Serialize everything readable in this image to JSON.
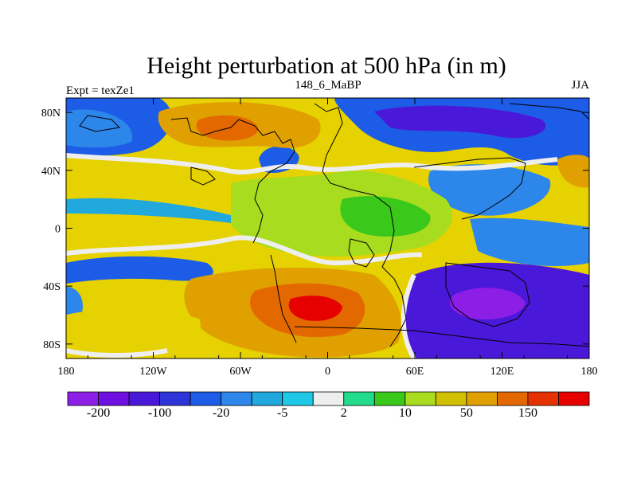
{
  "title": "Height perturbation at 500 hPa (in m)",
  "left_label": "Expt = texZe1",
  "center_label": "148_6_MaBP",
  "right_label": "JJA",
  "lon_ticks": [
    "180",
    "120W",
    "60W",
    "0",
    "60E",
    "120E",
    "180"
  ],
  "lat_ticks": [
    "80N",
    "40N",
    "0",
    "40S",
    "80S"
  ],
  "colorbar": {
    "colors": [
      "#8c1ee6",
      "#6e10e0",
      "#4a18d8",
      "#2e34d8",
      "#1c5ce6",
      "#2d86ea",
      "#21a8dc",
      "#1ec8e6",
      "#eeeeee",
      "#22dc8c",
      "#3ac81a",
      "#a8dc1e",
      "#d0c000",
      "#e0a000",
      "#e46800",
      "#e63200",
      "#e60000"
    ],
    "labels": [
      "-200",
      "-100",
      "-20",
      "-5",
      "2",
      "10",
      "50",
      "150"
    ]
  },
  "map": {
    "background": "#e6d200",
    "regions": [
      {
        "color": "#1c5ce6",
        "shape": "top-band"
      },
      {
        "color": "#2d86ea",
        "shape": "north-pacific"
      },
      {
        "color": "#e0a000",
        "shape": "north-atlantic-high"
      },
      {
        "color": "#e46800",
        "shape": "north-atlantic-core"
      },
      {
        "color": "#a8dc1e",
        "shape": "equatorial-band"
      },
      {
        "color": "#4a18d8",
        "shape": "south-indian-low"
      },
      {
        "color": "#8c1ee6",
        "shape": "south-indian-core"
      },
      {
        "color": "#e46800",
        "shape": "south-atlantic-high"
      },
      {
        "color": "#e60000",
        "shape": "south-atlantic-core"
      },
      {
        "color": "#eeeeee",
        "shape": "zero-lines"
      }
    ]
  }
}
